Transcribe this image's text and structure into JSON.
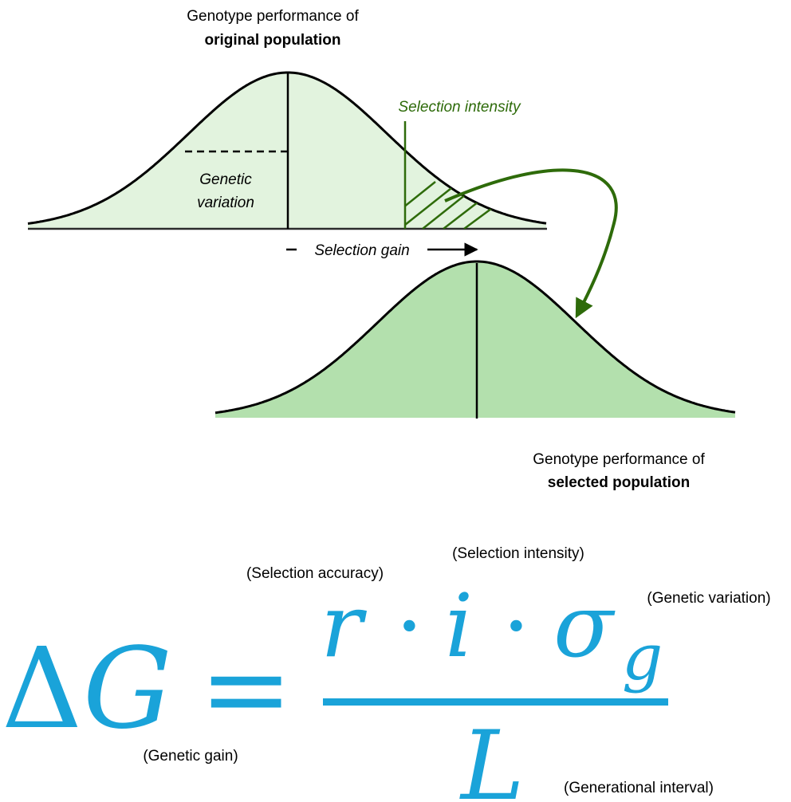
{
  "original_population": {
    "title_line1": "Genotype performance of",
    "title_line2": "original population",
    "selection_intensity_label": "Selection intensity",
    "genetic_variation_line1": "Genetic",
    "genetic_variation_line2": "variation"
  },
  "selection_gain_label": "Selection gain",
  "selected_population": {
    "title_line1": "Genotype performance of",
    "title_line2": "selected population"
  },
  "formula": {
    "lhs_delta": "Δ",
    "lhs_g": "G",
    "equals": "=",
    "r": "r",
    "i": "i",
    "sigma": "σ",
    "subscript_g": "g",
    "denominator_l": "L",
    "dot1": "·",
    "dot2": "·",
    "annotations": {
      "selection_accuracy": "(Selection accuracy)",
      "selection_intensity": "(Selection intensity)",
      "genetic_variation": "(Genetic variation)",
      "genetic_gain": "(Genetic gain)",
      "generational_interval": "(Generational interval)"
    }
  },
  "colors": {
    "original_fill": "#e2f3de",
    "selected_fill": "#b3e0ad",
    "selection_green": "#2e6b0a",
    "formula_blue": "#1aa3d9"
  }
}
